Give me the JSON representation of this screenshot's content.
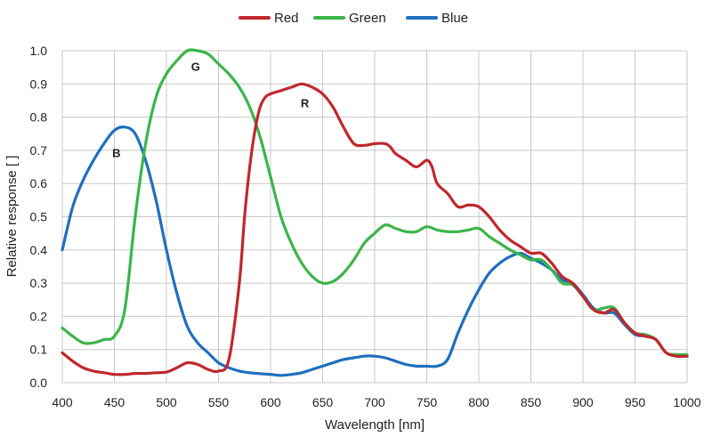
{
  "chart_data": {
    "type": "line",
    "xlabel": "Wavelength [nm]",
    "ylabel": "Relative response [ ]",
    "xlim": [
      400,
      1000
    ],
    "ylim": [
      0,
      1
    ],
    "x_ticks": [
      "400",
      "450",
      "500",
      "550",
      "600",
      "650",
      "700",
      "750",
      "800",
      "850",
      "900",
      "950",
      "1000"
    ],
    "y_ticks": [
      "0.0",
      "0.1",
      "0.2",
      "0.3",
      "0.4",
      "0.5",
      "0.6",
      "0.7",
      "0.8",
      "0.9",
      "1.0"
    ],
    "grid": true,
    "legend_position": "top-center",
    "series": [
      {
        "name": "Red",
        "color": "#c0282d",
        "x": [
          400,
          410,
          420,
          430,
          440,
          450,
          460,
          470,
          480,
          490,
          500,
          510,
          520,
          530,
          540,
          550,
          560,
          570,
          575,
          580,
          585,
          590,
          595,
          600,
          610,
          620,
          630,
          640,
          650,
          660,
          670,
          680,
          690,
          700,
          710,
          715,
          720,
          730,
          740,
          750,
          755,
          760,
          770,
          780,
          790,
          800,
          810,
          820,
          830,
          840,
          850,
          860,
          870,
          880,
          890,
          900,
          910,
          920,
          930,
          940,
          950,
          960,
          970,
          980,
          990,
          1000
        ],
        "y": [
          0.09,
          0.065,
          0.045,
          0.035,
          0.03,
          0.025,
          0.025,
          0.028,
          0.028,
          0.03,
          0.032,
          0.045,
          0.06,
          0.055,
          0.04,
          0.035,
          0.07,
          0.3,
          0.5,
          0.65,
          0.76,
          0.83,
          0.86,
          0.87,
          0.88,
          0.89,
          0.9,
          0.89,
          0.87,
          0.83,
          0.77,
          0.72,
          0.715,
          0.72,
          0.72,
          0.71,
          0.69,
          0.67,
          0.65,
          0.67,
          0.65,
          0.6,
          0.57,
          0.53,
          0.535,
          0.53,
          0.5,
          0.46,
          0.43,
          0.41,
          0.39,
          0.39,
          0.36,
          0.32,
          0.3,
          0.26,
          0.22,
          0.21,
          0.22,
          0.18,
          0.15,
          0.14,
          0.13,
          0.09,
          0.08,
          0.08
        ]
      },
      {
        "name": "Green",
        "color": "#3bb54a",
        "x": [
          400,
          410,
          420,
          430,
          440,
          450,
          460,
          470,
          480,
          490,
          500,
          510,
          520,
          530,
          540,
          550,
          560,
          570,
          580,
          590,
          600,
          610,
          620,
          630,
          640,
          650,
          660,
          670,
          680,
          690,
          700,
          710,
          720,
          730,
          740,
          750,
          760,
          770,
          780,
          790,
          800,
          810,
          820,
          830,
          840,
          850,
          860,
          870,
          880,
          890,
          900,
          910,
          920,
          930,
          940,
          950,
          960,
          970,
          980,
          990,
          1000
        ],
        "y": [
          0.165,
          0.14,
          0.12,
          0.12,
          0.13,
          0.14,
          0.22,
          0.5,
          0.72,
          0.86,
          0.93,
          0.97,
          1.0,
          1.0,
          0.99,
          0.96,
          0.93,
          0.89,
          0.83,
          0.74,
          0.62,
          0.5,
          0.42,
          0.36,
          0.32,
          0.3,
          0.305,
          0.33,
          0.37,
          0.42,
          0.45,
          0.475,
          0.465,
          0.455,
          0.455,
          0.47,
          0.46,
          0.455,
          0.455,
          0.46,
          0.465,
          0.44,
          0.42,
          0.4,
          0.385,
          0.37,
          0.37,
          0.34,
          0.3,
          0.295,
          0.26,
          0.22,
          0.225,
          0.225,
          0.18,
          0.15,
          0.145,
          0.13,
          0.09,
          0.085,
          0.085
        ]
      },
      {
        "name": "Blue",
        "color": "#1f6fbf",
        "x": [
          400,
          410,
          420,
          430,
          440,
          450,
          460,
          470,
          480,
          490,
          500,
          510,
          520,
          530,
          540,
          550,
          560,
          570,
          580,
          590,
          600,
          610,
          620,
          630,
          640,
          650,
          660,
          670,
          680,
          690,
          700,
          710,
          720,
          730,
          740,
          750,
          760,
          770,
          780,
          790,
          800,
          810,
          820,
          830,
          840,
          850,
          860,
          870,
          880,
          890,
          900,
          910,
          920,
          930,
          940,
          950,
          960,
          970,
          980,
          990,
          1000
        ],
        "y": [
          0.4,
          0.53,
          0.61,
          0.67,
          0.72,
          0.76,
          0.77,
          0.75,
          0.67,
          0.55,
          0.4,
          0.27,
          0.17,
          0.12,
          0.09,
          0.06,
          0.045,
          0.035,
          0.03,
          0.027,
          0.025,
          0.022,
          0.025,
          0.03,
          0.04,
          0.05,
          0.06,
          0.07,
          0.075,
          0.08,
          0.08,
          0.075,
          0.065,
          0.055,
          0.05,
          0.05,
          0.05,
          0.07,
          0.15,
          0.22,
          0.28,
          0.33,
          0.36,
          0.38,
          0.39,
          0.375,
          0.36,
          0.34,
          0.31,
          0.3,
          0.265,
          0.225,
          0.21,
          0.21,
          0.175,
          0.145,
          0.14,
          0.13,
          0.09,
          0.08,
          0.08
        ]
      }
    ],
    "annotations": [
      {
        "text": "R",
        "x": 633,
        "y": 0.83
      },
      {
        "text": "G",
        "x": 528,
        "y": 0.94
      },
      {
        "text": "B",
        "x": 452,
        "y": 0.68
      }
    ]
  }
}
